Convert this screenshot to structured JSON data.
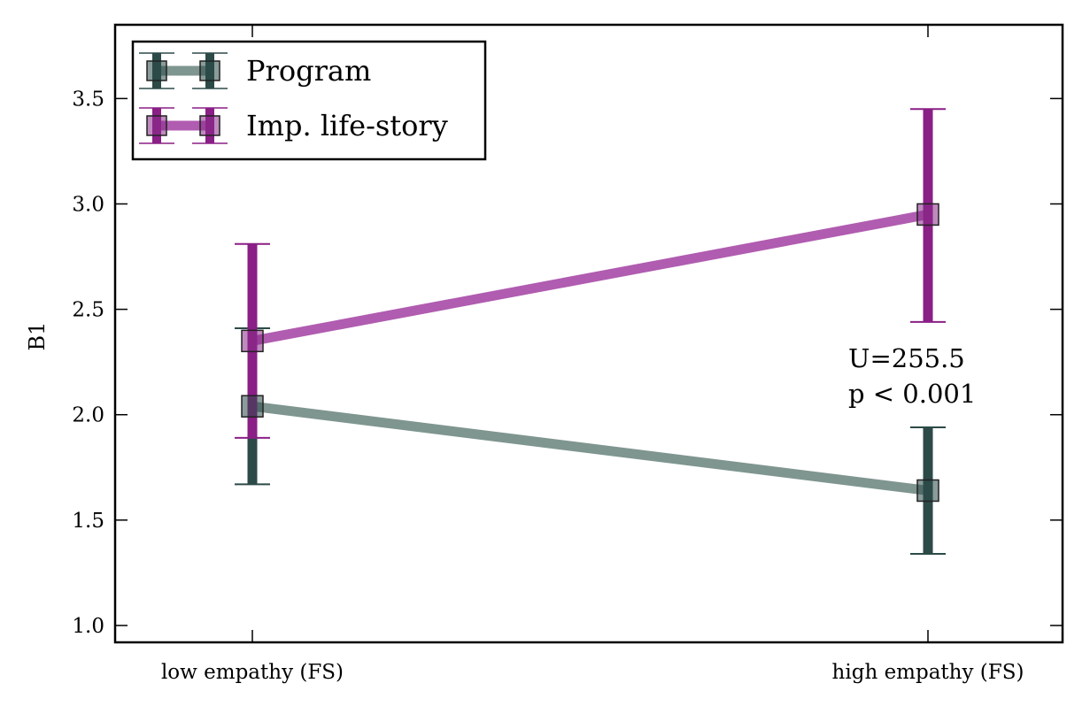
{
  "chart_data": {
    "type": "line",
    "title": "",
    "xlabel": "",
    "ylabel": "B1",
    "categories": [
      "low empathy (FS)",
      "high empathy (FS)"
    ],
    "ylim": [
      0.92,
      3.85
    ],
    "yticks": [
      "1.0",
      "1.5",
      "2.0",
      "2.5",
      "3.0",
      "3.5"
    ],
    "grid": false,
    "legend_position": "top-left",
    "series": [
      {
        "name": "Program",
        "values": [
          2.04,
          1.64
        ],
        "error_low": [
          1.67,
          1.34
        ],
        "error_high": [
          2.41,
          1.94
        ],
        "line_color": "#7f9590",
        "marker_color": "#2c4a48",
        "error_color": "#2c4a48"
      },
      {
        "name": "Imp. life-story",
        "values": [
          2.35,
          2.95
        ],
        "error_low": [
          1.89,
          2.44
        ],
        "error_high": [
          2.81,
          3.45
        ],
        "line_color": "#b05cb0",
        "marker_color": "#8a2c8a",
        "error_color": "#8a1f86"
      }
    ],
    "annotations": [
      {
        "lines": [
          "U=255.5",
          "p < 0.001"
        ]
      }
    ]
  }
}
